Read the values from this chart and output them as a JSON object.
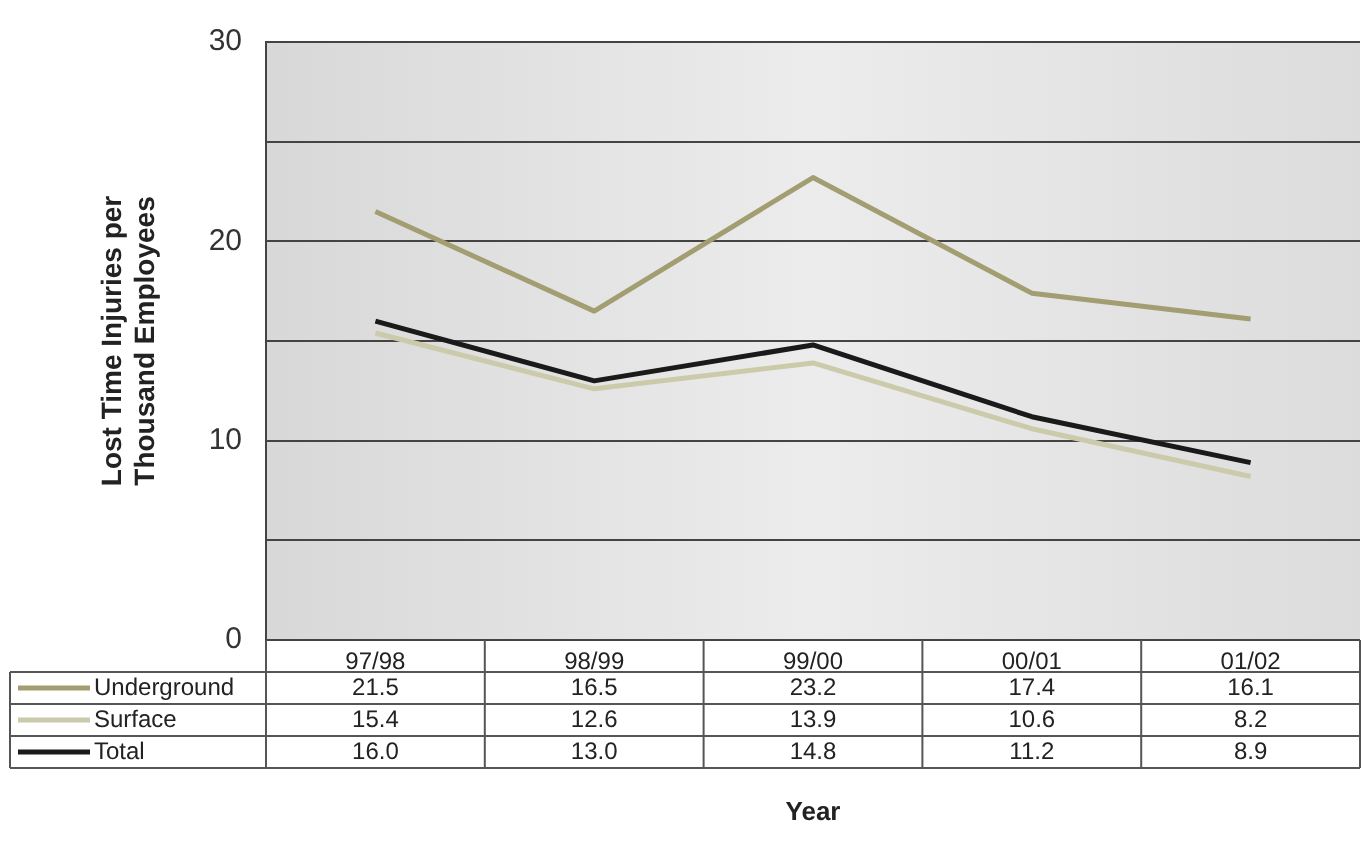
{
  "chart_data": {
    "type": "line",
    "ylabel": "Lost Time Injuries per Thousand Employees",
    "xlabel": "Year",
    "categories": [
      "97/98",
      "98/99",
      "99/00",
      "00/01",
      "01/02"
    ],
    "series": [
      {
        "name": "Underground",
        "color": "#a39d72",
        "values": [
          21.5,
          16.5,
          23.2,
          17.4,
          16.1
        ],
        "value_labels": [
          "21.5",
          "16.5",
          "23.2",
          "17.4",
          "16.1"
        ]
      },
      {
        "name": "Surface",
        "color": "#cbcbab",
        "values": [
          15.4,
          12.6,
          13.9,
          10.6,
          8.2
        ],
        "value_labels": [
          "15.4",
          "12.6",
          "13.9",
          "10.6",
          "8.2"
        ]
      },
      {
        "name": "Total",
        "color": "#1a1a1a",
        "values": [
          16.0,
          13.0,
          14.8,
          11.2,
          8.9
        ],
        "value_labels": [
          "16.0",
          "13.0",
          "14.8",
          "11.2",
          "8.9"
        ]
      }
    ],
    "ylim": [
      0,
      30
    ],
    "yticks": [
      0,
      {
        "value": 5,
        "label": null
      },
      10,
      {
        "value": 15,
        "label": null
      },
      20,
      {
        "value": 25,
        "label": null
      },
      30
    ],
    "grid": "y",
    "legend": "bottom left",
    "marker": "none",
    "line_style": "solid"
  }
}
